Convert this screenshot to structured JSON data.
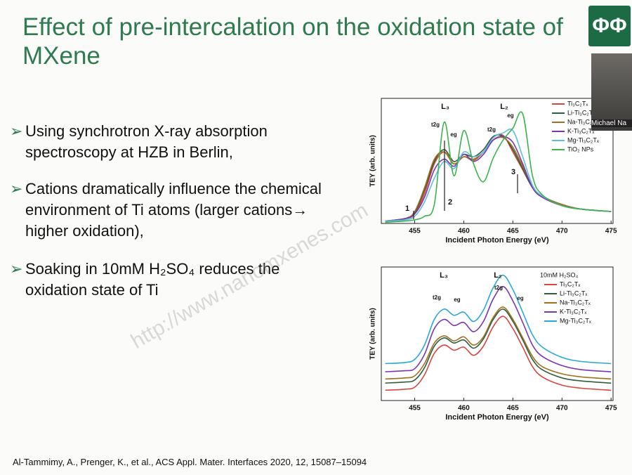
{
  "title": "Effect of pre-intercalation on the oxidation state of MXene",
  "bullets": [
    "Using synchrotron X-ray absorption spectroscopy at HZB in Berlin,",
    "Cations dramatically influence the chemical environment of Ti atoms (larger cations→ higher oxidation),",
    "Soaking in 10mM H₂SO₄ reduces the oxidation state of Ti"
  ],
  "citation": "Al-Tammimy, A., Prenger, K., et al., ACS Appl. Mater. Interfaces 2020, 12, 15087–15094",
  "watermark": "http://www.nanomxenes.com",
  "webcam_label": "Michael Na",
  "chart_data": [
    {
      "type": "line",
      "x_label": "Incident Photon Energy (eV)",
      "y_label": "TEY (arb. units)",
      "x": [
        452,
        454,
        455,
        456,
        457,
        458,
        459,
        460,
        461,
        462,
        463,
        464,
        465,
        466,
        467,
        468,
        470,
        472,
        475
      ],
      "xlim": [
        451.6,
        475.2
      ],
      "xticks": [
        455,
        460,
        465,
        470,
        475
      ],
      "ylim": [
        0,
        10.5
      ],
      "annotations": [
        "L₃",
        "L₂",
        "t2g",
        "eg",
        "t2g",
        "eg",
        "1",
        "2",
        "3"
      ],
      "series": [
        {
          "name": "Ti₃C₂Tₓ",
          "color": "#d9463e",
          "values": [
            0.2,
            0.4,
            0.8,
            2.5,
            5.0,
            6.0,
            5.0,
            5.6,
            5.4,
            6.0,
            7.2,
            7.4,
            6.0,
            4.5,
            3.0,
            2.2,
            1.5,
            1.2,
            1.0
          ]
        },
        {
          "name": "Li-Ti₃C₂Tₓ",
          "color": "#2e5e3e",
          "values": [
            0.2,
            0.4,
            0.9,
            2.8,
            5.2,
            6.2,
            5.2,
            5.8,
            5.6,
            6.2,
            7.3,
            7.3,
            6.2,
            4.6,
            3.0,
            2.2,
            1.5,
            1.2,
            1.0
          ]
        },
        {
          "name": "Na-Ti₃C₂Tₓ",
          "color": "#a0701e",
          "values": [
            0.2,
            0.4,
            1.0,
            3.0,
            5.4,
            6.0,
            5.0,
            5.6,
            5.3,
            6.0,
            7.0,
            7.2,
            6.4,
            4.8,
            3.1,
            2.3,
            1.6,
            1.2,
            1.0
          ]
        },
        {
          "name": "K-Ti₃C₂Tₓ",
          "color": "#7a35b0",
          "values": [
            0.2,
            0.4,
            0.8,
            2.2,
            4.5,
            5.4,
            4.8,
            5.8,
            5.2,
            5.8,
            7.0,
            7.3,
            6.8,
            5.0,
            3.0,
            2.2,
            1.5,
            1.2,
            1.0
          ]
        },
        {
          "name": "Mg-Ti₃C₂Tₓ",
          "color": "#5bbfe0",
          "values": [
            0.2,
            0.3,
            0.6,
            1.8,
            3.8,
            5.2,
            4.6,
            6.0,
            5.6,
            6.0,
            7.2,
            7.6,
            7.8,
            5.6,
            3.2,
            2.3,
            1.5,
            1.2,
            1.0
          ]
        },
        {
          "name": "TiO₂ NPs",
          "color": "#3cb44b",
          "values": [
            0.1,
            0.2,
            0.3,
            0.6,
            1.6,
            8.5,
            4.0,
            7.8,
            5.0,
            3.5,
            5.5,
            7.0,
            8.0,
            9.2,
            4.0,
            2.4,
            1.5,
            1.2,
            1.0
          ]
        }
      ]
    },
    {
      "type": "line",
      "x_label": "Incident Photon Energy (eV)",
      "y_label": "TEY (arb. units)",
      "legend_title": "10mM H₂SO₄",
      "x": [
        452,
        454,
        455,
        456,
        457,
        458,
        459,
        460,
        461,
        462,
        463,
        464,
        465,
        466,
        467,
        468,
        470,
        472,
        475
      ],
      "xlim": [
        451.6,
        475.2
      ],
      "xticks": [
        455,
        460,
        465,
        470,
        475
      ],
      "ylim": [
        0,
        13
      ],
      "annotations": [
        "L₃",
        "L₂",
        "t2g",
        "eg",
        "t2g",
        "eg"
      ],
      "series": [
        {
          "name": "Ti₃C₂Tₓ",
          "color": "#d9463e",
          "values": [
            1.0,
            1.1,
            1.3,
            2.5,
            4.6,
            5.4,
            4.9,
            5.2,
            4.4,
            5.3,
            7.2,
            8.2,
            7.0,
            5.2,
            3.3,
            2.3,
            1.5,
            1.2,
            1.0
          ]
        },
        {
          "name": "Li-Ti₃C₂Tₓ",
          "color": "#2e5e3e",
          "values": [
            1.7,
            1.8,
            2.0,
            3.2,
            5.3,
            6.1,
            5.6,
            5.9,
            5.1,
            6.0,
            7.9,
            8.9,
            7.7,
            5.9,
            4.0,
            3.0,
            2.2,
            1.9,
            1.7
          ]
        },
        {
          "name": "Na-Ti₃C₂Tₓ",
          "color": "#a0701e",
          "values": [
            2.1,
            2.2,
            2.4,
            3.6,
            5.6,
            6.3,
            5.8,
            6.2,
            5.4,
            6.2,
            8.1,
            9.1,
            7.9,
            6.1,
            4.3,
            3.3,
            2.6,
            2.3,
            2.1
          ]
        },
        {
          "name": "K-Ti₃C₂Tₓ",
          "color": "#7a35b0",
          "values": [
            2.8,
            2.9,
            3.1,
            4.5,
            7.0,
            7.9,
            7.3,
            7.6,
            6.7,
            7.7,
            9.9,
            11.1,
            9.7,
            7.6,
            5.4,
            4.3,
            3.4,
            3.0,
            2.8
          ]
        },
        {
          "name": "Mg-Ti₃C₂Tₓ",
          "color": "#29a8d8",
          "values": [
            3.6,
            3.7,
            4.0,
            5.4,
            7.9,
            8.9,
            8.3,
            8.6,
            7.7,
            8.8,
            11.0,
            12.2,
            10.8,
            8.6,
            6.4,
            5.2,
            4.2,
            3.8,
            3.6
          ]
        }
      ]
    }
  ]
}
